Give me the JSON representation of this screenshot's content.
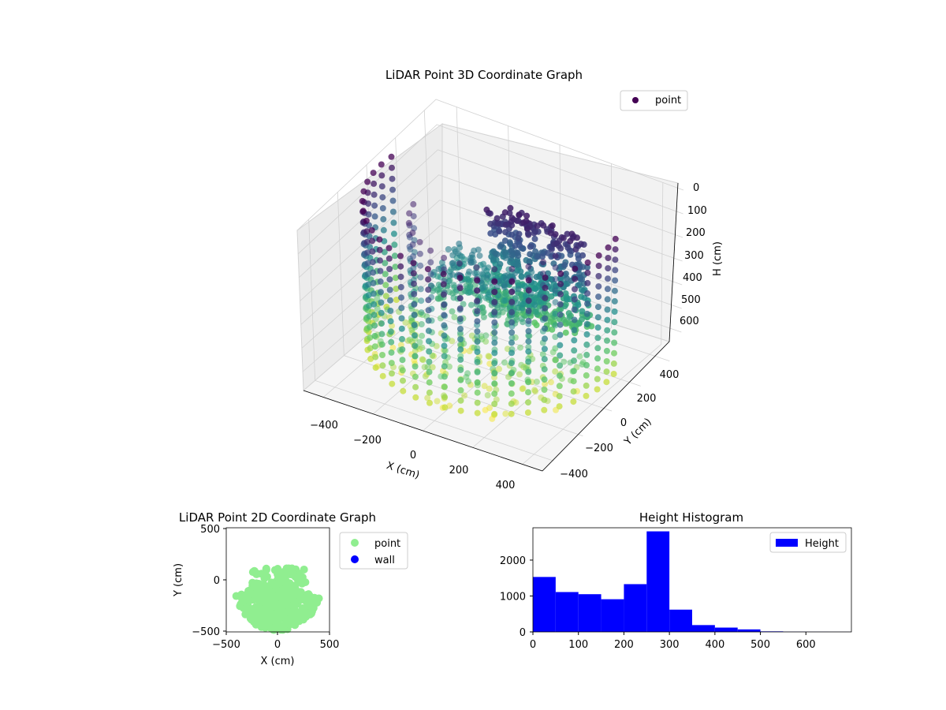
{
  "charts": {
    "scatter3d": {
      "title": "LiDAR Point 3D Coordinate Graph",
      "legend": [
        "point"
      ],
      "xlabel": "X (cm)",
      "ylabel": "Y (cm)",
      "zlabel": "H (cm)",
      "x_ticks": [
        "−400",
        "−200",
        "0",
        "200",
        "400"
      ],
      "y_ticks": [
        "−400",
        "−200",
        "0",
        "200",
        "400"
      ],
      "z_ticks": [
        "0",
        "100",
        "200",
        "300",
        "400",
        "500",
        "600"
      ]
    },
    "scatter2d": {
      "title": "LiDAR Point 2D Coordinate Graph",
      "legend": [
        "point",
        "wall"
      ],
      "xlabel": "X (cm)",
      "ylabel": "Y (cm)",
      "x_ticks": [
        "−500",
        "0",
        "500"
      ],
      "y_ticks": [
        "500",
        "0",
        "−500"
      ]
    },
    "histogram": {
      "title": "Height Histogram",
      "legend": [
        "Height"
      ],
      "x_ticks": [
        "0",
        "100",
        "200",
        "300",
        "400",
        "500",
        "600"
      ],
      "y_ticks": [
        "0",
        "1000",
        "2000"
      ]
    }
  },
  "chart_data": [
    {
      "type": "scatter",
      "subtype": "3d",
      "title": "LiDAR Point 3D Coordinate Graph",
      "xlabel": "X (cm)",
      "ylabel": "Y (cm)",
      "zlabel": "H (cm)",
      "xlim": [
        -480,
        480
      ],
      "ylim": [
        -480,
        480
      ],
      "zlim": [
        0,
        680
      ],
      "z_inverted": true,
      "legend": "top-right",
      "colormap": "viridis",
      "series": [
        {
          "name": "point",
          "color": "#440154"
        }
      ]
    },
    {
      "type": "scatter",
      "title": "LiDAR Point 2D Coordinate Graph",
      "xlabel": "X (cm)",
      "ylabel": "Y (cm)",
      "xlim": [
        -500,
        500
      ],
      "ylim": [
        -500,
        500
      ],
      "legend": "outside-right",
      "series": [
        {
          "name": "point",
          "color": "#90ee90"
        },
        {
          "name": "wall",
          "color": "#0000ff"
        }
      ]
    },
    {
      "type": "bar",
      "subtype": "histogram",
      "title": "Height Histogram",
      "xlim": [
        0,
        700
      ],
      "ylim": [
        0,
        2900
      ],
      "bin_edges": [
        0,
        50,
        100,
        150,
        200,
        250,
        300,
        350,
        400,
        450,
        500,
        550,
        600,
        650,
        700
      ],
      "values": [
        1530,
        1110,
        1050,
        910,
        1330,
        2800,
        620,
        190,
        120,
        70,
        15,
        5,
        3,
        2
      ],
      "legend": "top-right",
      "series": [
        {
          "name": "Height",
          "color": "#0000ff"
        }
      ]
    }
  ]
}
